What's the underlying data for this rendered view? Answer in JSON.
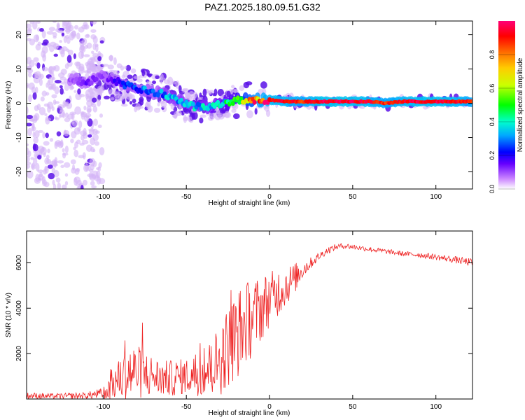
{
  "title": "PAZ1.2025.180.09.51.G32",
  "colors": {
    "snr_line": "#ee2222",
    "ridge_gradient": [
      "#5500ee",
      "#0000ff",
      "#00ccff",
      "#00ff66",
      "#ffff00",
      "#ff7700",
      "#ff0000"
    ],
    "scatter_light": "#d4b4f6",
    "scatter_dark": "#5a10e8"
  },
  "chart_data": [
    {
      "type": "heatmap",
      "title": "PAZ1.2025.180.09.51.G32",
      "xlabel": "Height of straight line (km)",
      "ylabel": "Frequency (Hz)",
      "xlim": [
        -146,
        122
      ],
      "ylim": [
        -25,
        24
      ],
      "x_ticks": [
        -100,
        -50,
        0,
        50,
        100
      ],
      "y_ticks": [
        -20,
        -10,
        0,
        10,
        20
      ],
      "grid": false,
      "ridge": {
        "description_values": "peak frequency vs height",
        "x": [
          -118,
          -110,
          -100,
          -95,
          -90,
          -85,
          -80,
          -75,
          -70,
          -65,
          -60,
          -55,
          -50,
          -45,
          -40,
          -35,
          -30,
          -25,
          -20,
          -15,
          -10,
          -5,
          0,
          10,
          20,
          30,
          40,
          50,
          60,
          70,
          80,
          90,
          100,
          110,
          122
        ],
        "y": [
          7,
          6,
          8,
          7,
          6,
          5,
          4,
          4,
          3,
          3,
          2,
          1,
          0,
          -1,
          -1,
          -1,
          0,
          0,
          1,
          1,
          1,
          1,
          1,
          0.5,
          0.5,
          0.5,
          0.5,
          0.5,
          0.5,
          0,
          0.5,
          0.5,
          0.5,
          0.5,
          0.5
        ],
        "amplitude": [
          0.1,
          0.15,
          0.1,
          0.15,
          0.2,
          0.3,
          0.25,
          0.3,
          0.25,
          0.3,
          0.35,
          0.3,
          0.35,
          0.35,
          0.35,
          0.4,
          0.4,
          0.45,
          0.5,
          0.7,
          0.85,
          0.9,
          0.95,
          0.95,
          0.9,
          0.98,
          0.98,
          0.98,
          0.95,
          0.9,
          0.95,
          0.97,
          0.97,
          0.96,
          0.9
        ]
      },
      "colorbar": {
        "label": "Normalized spectral amplitude",
        "range": [
          0,
          1
        ],
        "ticks": [
          "0.0",
          "0.2",
          "0.4",
          "0.6",
          "0.8"
        ]
      }
    },
    {
      "type": "line",
      "xlabel": "Height of straight line (km)",
      "ylabel": "SNR (10 * v/v)",
      "xlim": [
        -146,
        122
      ],
      "ylim": [
        0,
        7400
      ],
      "x_ticks": [
        -100,
        -50,
        0,
        50,
        100
      ],
      "y_ticks": [
        2000,
        4000,
        6000
      ],
      "grid": false,
      "x": [
        -146,
        -130,
        -110,
        -100,
        -95,
        -90,
        -85,
        -80,
        -75,
        -70,
        -65,
        -60,
        -55,
        -50,
        -45,
        -40,
        -35,
        -30,
        -25,
        -20,
        -15,
        -10,
        -5,
        0,
        5,
        10,
        15,
        20,
        25,
        30,
        35,
        40,
        45,
        50,
        60,
        70,
        80,
        90,
        100,
        110,
        122
      ],
      "y_mean": [
        150,
        120,
        150,
        250,
        600,
        900,
        1100,
        1200,
        1100,
        1000,
        900,
        900,
        950,
        1000,
        1050,
        1100,
        1400,
        1700,
        2300,
        2800,
        3300,
        3600,
        4000,
        4400,
        4700,
        5000,
        5300,
        5700,
        6000,
        6300,
        6550,
        6700,
        6750,
        6700,
        6600,
        6500,
        6400,
        6350,
        6250,
        6150,
        6000
      ],
      "y_spread": [
        150,
        120,
        150,
        250,
        700,
        900,
        1300,
        1200,
        1100,
        900,
        800,
        800,
        800,
        800,
        900,
        1000,
        1300,
        1600,
        1800,
        2000,
        1900,
        1700,
        1500,
        1200,
        1100,
        900,
        700,
        400,
        250,
        180,
        150,
        130,
        120,
        120,
        110,
        110,
        110,
        120,
        130,
        150,
        180
      ]
    }
  ]
}
